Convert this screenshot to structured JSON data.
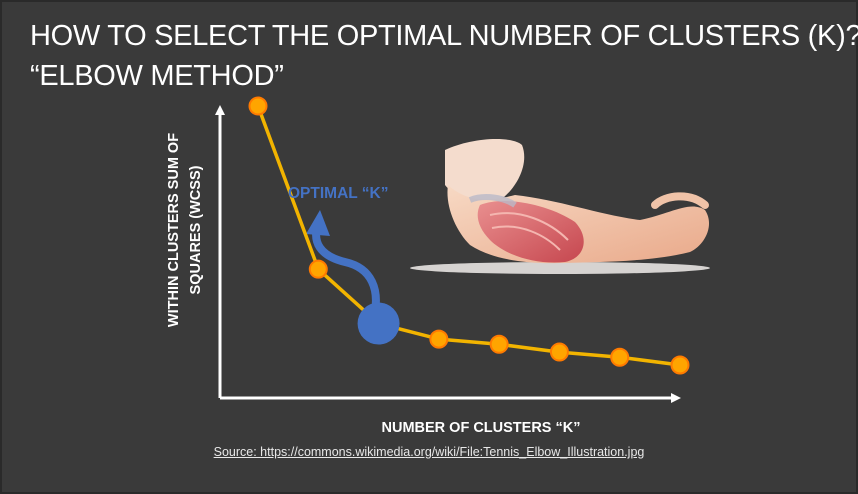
{
  "slide": {
    "title_line_1": "HOW TO SELECT THE OPTIMAL NUMBER OF CLUSTERS (K)?",
    "title_line_2": "“ELBOW METHOD”",
    "source": "Source: https://commons.wikimedia.org/wiki/File:Tennis_Elbow_Illustration.jpg"
  },
  "chart_data": {
    "type": "line",
    "xlabel": "NUMBER OF CLUSTERS “K”",
    "ylabel": "WITHIN CLUSTERS SUM OF SQUARES (WCSS)",
    "ylabel_line_1": "WITHIN CLUSTERS SUM OF",
    "ylabel_line_2": "SQUARES (WCSS)",
    "annotation": "OPTIMAL “K”",
    "x": [
      1,
      2,
      3,
      4,
      5,
      6,
      7,
      8
    ],
    "y": [
      100,
      37,
      16,
      10,
      8,
      5,
      3,
      0
    ],
    "optimal_index": 2,
    "colors": {
      "line": "#f2b400",
      "marker": "#ffa500",
      "marker_edge": "#ff7a00",
      "optimal": "#4472c4",
      "axis": "#ffffff"
    }
  }
}
